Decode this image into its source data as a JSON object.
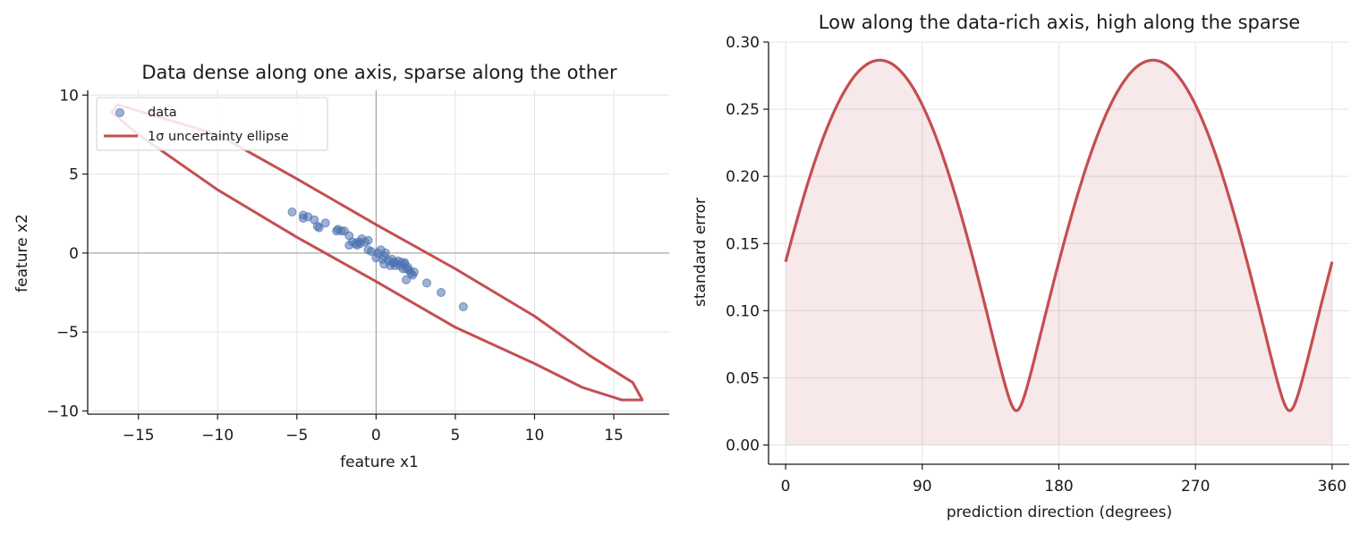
{
  "colors": {
    "data_points": "#4c72b0",
    "ellipse": "#c44e52",
    "fill": "#c44e52",
    "grid": "#e3e3e3",
    "zero_lines": "#999999"
  },
  "chart_data": [
    {
      "type": "scatter",
      "title": "Data dense along one axis, sparse along the other",
      "xlabel": "feature  x1",
      "ylabel": "feature  x2",
      "xlim": [
        -18.2,
        18.5
      ],
      "ylim": [
        -10.2,
        10.3
      ],
      "xticks": [
        -15,
        -10,
        -5,
        0,
        5,
        10,
        15
      ],
      "xtick_labels": [
        "−15",
        "−10",
        "−5",
        "0",
        "5",
        "10",
        "15"
      ],
      "yticks": [
        -10,
        -5,
        0,
        5,
        10
      ],
      "ytick_labels": [
        "−10",
        "−5",
        "0",
        "5",
        "10"
      ],
      "grid": true,
      "zero_lines": true,
      "legend": {
        "placement": "top-left",
        "entries": [
          {
            "label": "data",
            "kind": "marker"
          },
          {
            "label": "1σ uncertainty ellipse",
            "kind": "line"
          }
        ]
      },
      "series": [
        {
          "name": "data",
          "kind": "scatter",
          "points": [
            [
              -5.3,
              2.6
            ],
            [
              -4.6,
              2.4
            ],
            [
              -4.6,
              2.2
            ],
            [
              -4.3,
              2.3
            ],
            [
              -3.9,
              2.1
            ],
            [
              -3.7,
              1.7
            ],
            [
              -3.6,
              1.6
            ],
            [
              -3.2,
              1.9
            ],
            [
              -2.5,
              1.4
            ],
            [
              -2.4,
              1.5
            ],
            [
              -2.2,
              1.4
            ],
            [
              -2.0,
              1.4
            ],
            [
              -1.7,
              1.1
            ],
            [
              -1.7,
              0.5
            ],
            [
              -1.5,
              0.7
            ],
            [
              -1.3,
              0.6
            ],
            [
              -1.2,
              0.5
            ],
            [
              -1.1,
              0.7
            ],
            [
              -1.0,
              0.6
            ],
            [
              -0.9,
              0.9
            ],
            [
              -0.7,
              0.7
            ],
            [
              -0.5,
              0.8
            ],
            [
              -0.5,
              0.2
            ],
            [
              -0.3,
              0.1
            ],
            [
              0.0,
              -0.3
            ],
            [
              0.1,
              0.0
            ],
            [
              0.3,
              0.2
            ],
            [
              0.4,
              -0.4
            ],
            [
              0.5,
              -0.2
            ],
            [
              0.6,
              0.0
            ],
            [
              0.5,
              -0.7
            ],
            [
              0.8,
              -0.5
            ],
            [
              0.9,
              -0.8
            ],
            [
              1.0,
              -0.4
            ],
            [
              1.1,
              -0.6
            ],
            [
              1.2,
              -0.8
            ],
            [
              1.2,
              -0.6
            ],
            [
              1.4,
              -0.5
            ],
            [
              1.5,
              -0.8
            ],
            [
              1.6,
              -0.6
            ],
            [
              1.7,
              -1.0
            ],
            [
              1.8,
              -0.7
            ],
            [
              1.9,
              -1.0
            ],
            [
              2.0,
              -0.9
            ],
            [
              2.1,
              -1.1
            ],
            [
              2.2,
              -1.3
            ],
            [
              2.3,
              -1.4
            ],
            [
              2.4,
              -1.2
            ],
            [
              1.8,
              -0.6
            ],
            [
              1.9,
              -1.7
            ],
            [
              3.2,
              -1.9
            ],
            [
              4.1,
              -2.5
            ],
            [
              5.5,
              -3.4
            ]
          ]
        },
        {
          "name": "1σ uncertainty ellipse",
          "kind": "closed-line",
          "points": [
            [
              16.8,
              -9.3
            ],
            [
              16.2,
              -8.2
            ],
            [
              13.5,
              -6.5
            ],
            [
              10.0,
              -4.0
            ],
            [
              5.0,
              -1.0
            ],
            [
              0.0,
              1.8
            ],
            [
              -5.0,
              4.7
            ],
            [
              -10.0,
              7.5
            ],
            [
              -15.0,
              9.0
            ],
            [
              -16.3,
              9.4
            ],
            [
              -16.7,
              8.9
            ],
            [
              -15.0,
              7.5
            ],
            [
              -10.0,
              4.0
            ],
            [
              -5.0,
              1.0
            ],
            [
              0.0,
              -1.8
            ],
            [
              5.0,
              -4.7
            ],
            [
              10.0,
              -7.0
            ],
            [
              13.0,
              -8.5
            ],
            [
              15.5,
              -9.3
            ]
          ]
        }
      ]
    },
    {
      "type": "area",
      "title": "Low along the data-rich axis, high along the sparse",
      "xlabel": "prediction direction  (degrees)",
      "ylabel": "standard error",
      "xlim": [
        -11.25,
        371.25
      ],
      "ylim": [
        -0.0143,
        0.3
      ],
      "xticks": [
        0,
        90,
        180,
        270,
        360
      ],
      "xtick_labels": [
        "0",
        "90",
        "180",
        "270",
        "360"
      ],
      "yticks": [
        0.0,
        0.05,
        0.1,
        0.15,
        0.2,
        0.25,
        0.3
      ],
      "ytick_labels": [
        "0.00",
        "0.05",
        "0.10",
        "0.15",
        "0.20",
        "0.25",
        "0.30"
      ],
      "grid": true,
      "series": [
        {
          "kind": "line-with-fill",
          "model": {
            "a_max": 0.2865,
            "b_min": 0.0255,
            "angle_of_max_deg": 62,
            "period_deg": 180
          },
          "x_range": [
            0,
            360
          ],
          "value_at_0": 0.14,
          "max_value": 0.2865,
          "min_value": 0.0255,
          "max_at_deg": [
            62,
            242
          ],
          "min_at_deg": [
            152,
            332
          ]
        }
      ]
    }
  ]
}
